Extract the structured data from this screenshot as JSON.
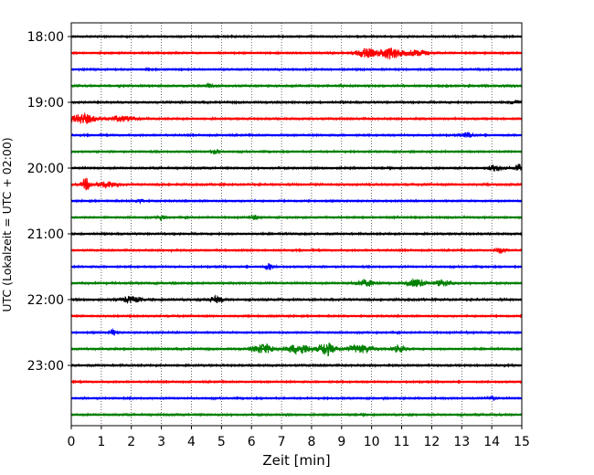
{
  "chart_data": {
    "type": "line",
    "title": "",
    "xlabel": "Zeit  [min]",
    "ylabel": "UTC (Lokalzeit = UTC + 02:00)",
    "xlim": [
      0,
      15
    ],
    "x_ticks": [
      "0",
      "1",
      "2",
      "3",
      "4",
      "5",
      "6",
      "7",
      "8",
      "9",
      "10",
      "11",
      "12",
      "13",
      "14",
      "15"
    ],
    "y_ticks": [
      "18:00",
      "19:00",
      "20:00",
      "21:00",
      "22:00",
      "23:00"
    ],
    "grid": "vertical dotted lines at each minute",
    "trace_interval_minutes": 15,
    "color_cycle": [
      "#000000",
      "#ff0000",
      "#0000ff",
      "#008000"
    ],
    "traces": [
      {
        "start": "18:00",
        "color": "#000000",
        "amplitude": 0.8,
        "events": []
      },
      {
        "start": "18:15",
        "color": "#ff0000",
        "amplitude": 0.8,
        "events": [
          {
            "t": 9.8,
            "width": 0.6,
            "amp": 5
          },
          {
            "t": 10.6,
            "width": 0.7,
            "amp": 6
          },
          {
            "t": 11.5,
            "width": 0.9,
            "amp": 3
          }
        ]
      },
      {
        "start": "18:30",
        "color": "#0000ff",
        "amplitude": 0.8,
        "events": []
      },
      {
        "start": "18:45",
        "color": "#008000",
        "amplitude": 0.9,
        "events": [
          {
            "t": 4.6,
            "width": 0.2,
            "amp": 2
          }
        ]
      },
      {
        "start": "19:00",
        "color": "#000000",
        "amplitude": 0.9,
        "events": [
          {
            "t": 14.8,
            "width": 0.3,
            "amp": 2
          }
        ]
      },
      {
        "start": "19:15",
        "color": "#ff0000",
        "amplitude": 0.9,
        "events": [
          {
            "t": 0.4,
            "width": 0.8,
            "amp": 5
          },
          {
            "t": 1.7,
            "width": 0.8,
            "amp": 3
          }
        ]
      },
      {
        "start": "19:30",
        "color": "#0000ff",
        "amplitude": 0.8,
        "events": [
          {
            "t": 13.2,
            "width": 0.4,
            "amp": 2.5
          }
        ]
      },
      {
        "start": "19:45",
        "color": "#008000",
        "amplitude": 0.8,
        "events": [
          {
            "t": 4.8,
            "width": 0.3,
            "amp": 2
          }
        ]
      },
      {
        "start": "20:00",
        "color": "#000000",
        "amplitude": 0.9,
        "events": [
          {
            "t": 14.1,
            "width": 0.4,
            "amp": 3
          },
          {
            "t": 14.9,
            "width": 0.2,
            "amp": 4
          }
        ]
      },
      {
        "start": "20:15",
        "color": "#ff0000",
        "amplitude": 0.9,
        "events": [
          {
            "t": 0.5,
            "width": 0.3,
            "amp": 6
          },
          {
            "t": 1.2,
            "width": 0.7,
            "amp": 3
          }
        ]
      },
      {
        "start": "20:30",
        "color": "#0000ff",
        "amplitude": 0.8,
        "events": [
          {
            "t": 2.3,
            "width": 0.2,
            "amp": 2
          }
        ]
      },
      {
        "start": "20:45",
        "color": "#008000",
        "amplitude": 0.8,
        "events": [
          {
            "t": 3.0,
            "width": 0.3,
            "amp": 2
          },
          {
            "t": 6.1,
            "width": 0.2,
            "amp": 2
          }
        ]
      },
      {
        "start": "21:00",
        "color": "#000000",
        "amplitude": 0.9,
        "events": []
      },
      {
        "start": "21:15",
        "color": "#ff0000",
        "amplitude": 0.8,
        "events": [
          {
            "t": 14.3,
            "width": 0.3,
            "amp": 3
          }
        ]
      },
      {
        "start": "21:30",
        "color": "#0000ff",
        "amplitude": 0.8,
        "events": [
          {
            "t": 6.6,
            "width": 0.3,
            "amp": 3
          }
        ]
      },
      {
        "start": "21:45",
        "color": "#008000",
        "amplitude": 0.9,
        "events": [
          {
            "t": 9.8,
            "width": 0.7,
            "amp": 3
          },
          {
            "t": 11.5,
            "width": 0.6,
            "amp": 4
          },
          {
            "t": 12.4,
            "width": 0.6,
            "amp": 3
          }
        ]
      },
      {
        "start": "22:00",
        "color": "#000000",
        "amplitude": 1.0,
        "events": [
          {
            "t": 2.0,
            "width": 0.6,
            "amp": 3
          },
          {
            "t": 4.8,
            "width": 0.5,
            "amp": 3
          }
        ]
      },
      {
        "start": "22:15",
        "color": "#ff0000",
        "amplitude": 0.8,
        "events": []
      },
      {
        "start": "22:30",
        "color": "#0000ff",
        "amplitude": 0.8,
        "events": [
          {
            "t": 1.4,
            "width": 0.2,
            "amp": 3
          }
        ]
      },
      {
        "start": "22:45",
        "color": "#008000",
        "amplitude": 0.9,
        "events": [
          {
            "t": 6.4,
            "width": 0.7,
            "amp": 5
          },
          {
            "t": 7.6,
            "width": 0.8,
            "amp": 5
          },
          {
            "t": 8.5,
            "width": 0.5,
            "amp": 7
          },
          {
            "t": 9.6,
            "width": 0.9,
            "amp": 4
          },
          {
            "t": 10.9,
            "width": 0.5,
            "amp": 3
          }
        ]
      },
      {
        "start": "23:00",
        "color": "#000000",
        "amplitude": 0.9,
        "events": []
      },
      {
        "start": "23:15",
        "color": "#ff0000",
        "amplitude": 0.8,
        "events": []
      },
      {
        "start": "23:30",
        "color": "#0000ff",
        "amplitude": 0.8,
        "events": [
          {
            "t": 14.0,
            "width": 0.3,
            "amp": 2
          }
        ]
      },
      {
        "start": "23:45",
        "color": "#008000",
        "amplitude": 0.9,
        "events": []
      }
    ]
  }
}
